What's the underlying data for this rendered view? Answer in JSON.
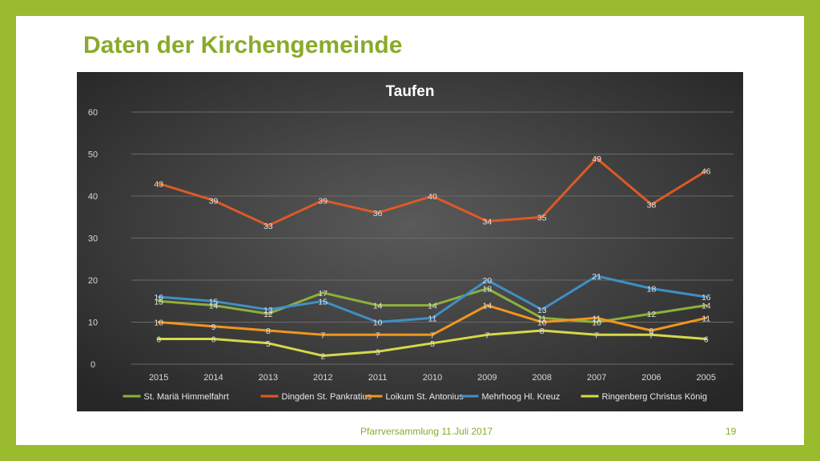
{
  "slide": {
    "title": "Daten der Kirchengemeinde",
    "footer_text": "Pfarrversammlung 11.Juli 2017",
    "page_number": "19"
  },
  "colors": {
    "frame": "#9bbb2f",
    "title": "#8aaa2a",
    "series": [
      "#8db03a",
      "#dc5a26",
      "#f0961e",
      "#3f8fc4",
      "#d4d94a"
    ]
  },
  "chart_data": {
    "type": "line",
    "title": "Taufen",
    "categories": [
      "2015",
      "2014",
      "2013",
      "2012",
      "2011",
      "2010",
      "2009",
      "2008",
      "2007",
      "2006",
      "2005"
    ],
    "ylim": [
      0,
      60
    ],
    "yticks": [
      0,
      10,
      20,
      30,
      40,
      50,
      60
    ],
    "grid": true,
    "legend_position": "bottom",
    "series": [
      {
        "name": "St. Mariä Himmelfahrt",
        "values": [
          15,
          14,
          12,
          17,
          14,
          14,
          18,
          11,
          10,
          12,
          14
        ]
      },
      {
        "name": "Dingden St. Pankratius",
        "values": [
          43,
          39,
          33,
          39,
          36,
          40,
          34,
          35,
          49,
          38,
          46
        ]
      },
      {
        "name": "Loikum St. Antonius",
        "values": [
          10,
          9,
          8,
          7,
          7,
          7,
          14,
          10,
          11,
          8,
          11
        ]
      },
      {
        "name": "Mehrhoog Hl. Kreuz",
        "values": [
          16,
          15,
          13,
          15,
          10,
          11,
          20,
          13,
          21,
          18,
          16
        ]
      },
      {
        "name": "Ringenberg Christus König",
        "values": [
          6,
          6,
          5,
          2,
          3,
          5,
          7,
          8,
          7,
          7,
          6
        ]
      }
    ]
  }
}
